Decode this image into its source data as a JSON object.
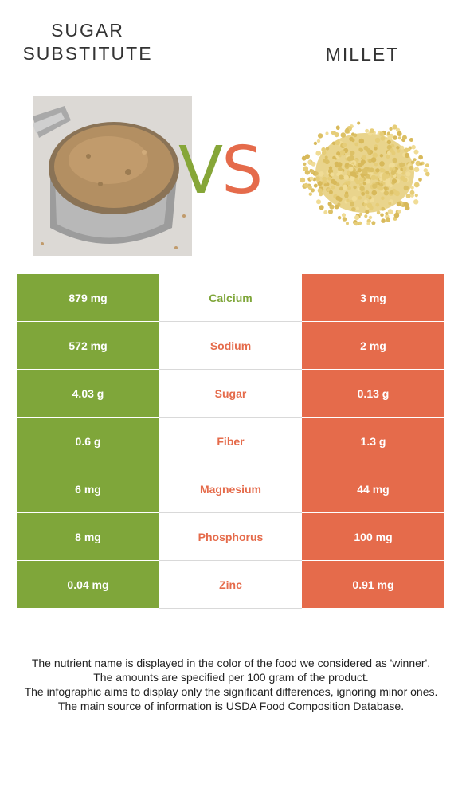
{
  "foods": {
    "left": {
      "name": "SUGAR SUBSTITUTE",
      "color": "#7fa63a"
    },
    "right": {
      "name": "MILLET",
      "color": "#e56b4b"
    }
  },
  "vs": {
    "v": "V",
    "s": "S"
  },
  "nutrients": [
    {
      "left": "879 mg",
      "name": "Calcium",
      "right": "3 mg",
      "winner": "left"
    },
    {
      "left": "572 mg",
      "name": "Sodium",
      "right": "2 mg",
      "winner": "right"
    },
    {
      "left": "4.03 g",
      "name": "Sugar",
      "right": "0.13 g",
      "winner": "right"
    },
    {
      "left": "0.6 g",
      "name": "Fiber",
      "right": "1.3 g",
      "winner": "right"
    },
    {
      "left": "6 mg",
      "name": "Magnesium",
      "right": "44 mg",
      "winner": "right"
    },
    {
      "left": "8 mg",
      "name": "Phosphorus",
      "right": "100 mg",
      "winner": "right"
    },
    {
      "left": "0.04 mg",
      "name": "Zinc",
      "right": "0.91 mg",
      "winner": "right"
    }
  ],
  "footer": [
    "The nutrient name is displayed in the color of the food we considered as 'winner'.",
    "The amounts are specified per 100 gram of the product.",
    "The infographic aims to display only the significant differences, ignoring minor ones.",
    "The main source of information is USDA Food Composition Database."
  ]
}
